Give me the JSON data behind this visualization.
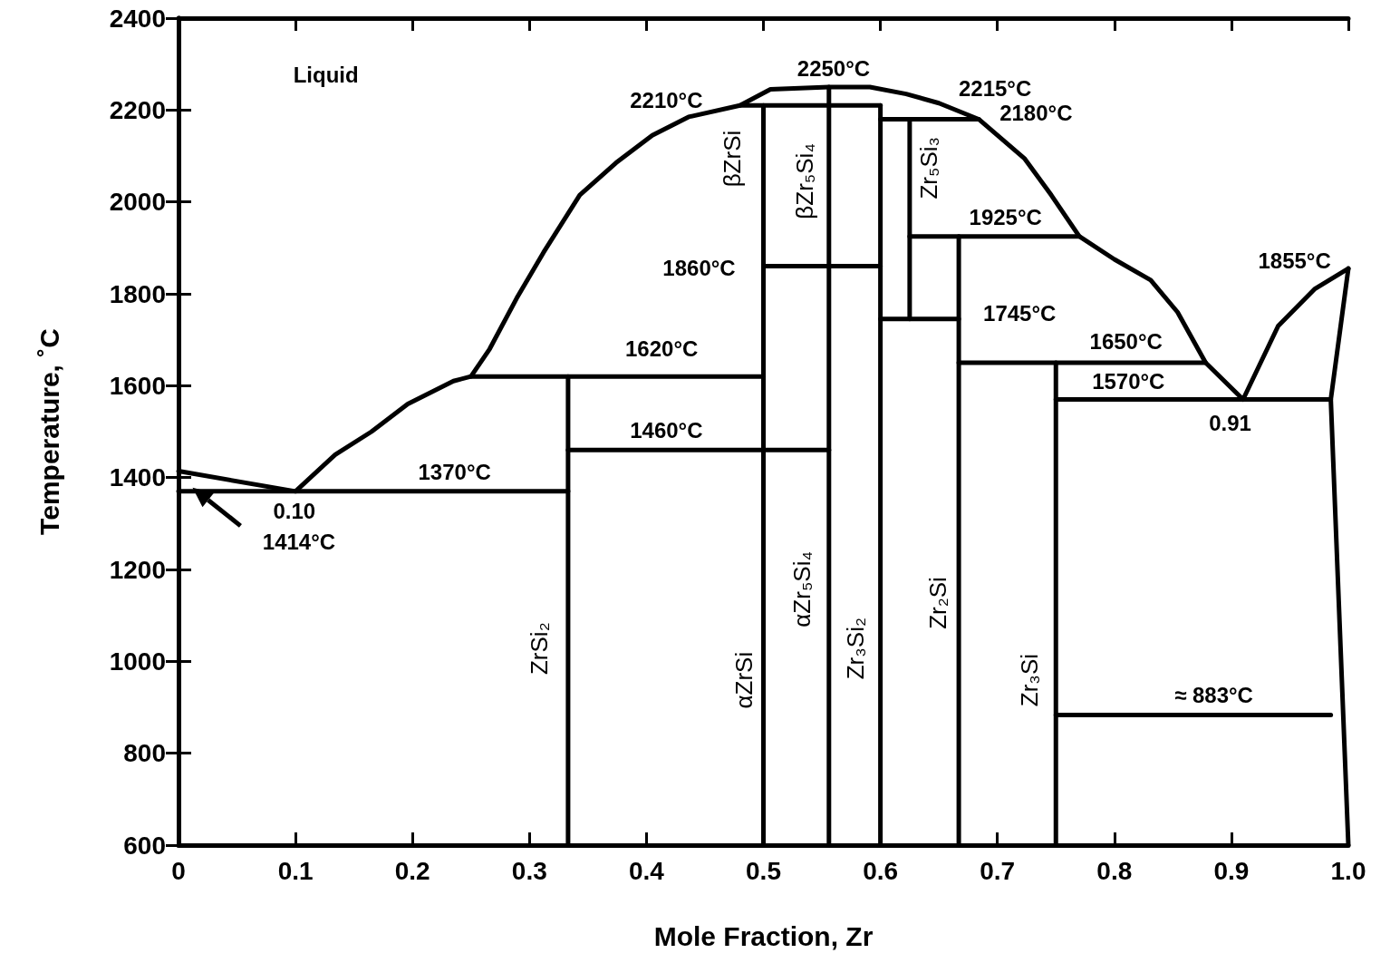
{
  "chart_data": {
    "type": "line",
    "xlabel": "Mole Fraction, Zr",
    "ylabel": "Temperature, ˚C",
    "xlim": [
      0,
      1
    ],
    "xticks": [
      0,
      0.1,
      0.2,
      0.3,
      0.4,
      0.5,
      0.6,
      0.7,
      0.8,
      0.9,
      {
        "value": 1,
        "label": "1.0"
      }
    ],
    "ylim": [
      600,
      2400
    ],
    "yticks": [
      600,
      800,
      1000,
      1200,
      1400,
      1600,
      1800,
      2000,
      2200,
      2400
    ],
    "grid": false,
    "marker": "none",
    "line_style": "solid",
    "series": [
      {
        "color": "#000000",
        "x": [
          0,
          0.1,
          0.134,
          0.165,
          0.196,
          0.235,
          0.25,
          0.266,
          0.289,
          0.312,
          0.343,
          0.374,
          0.405,
          0.436,
          0.48,
          0.506,
          0.556,
          0.591,
          0.622,
          0.65,
          0.684,
          0.723,
          0.746,
          0.77,
          0.8,
          0.831,
          0.854,
          0.878,
          0.91,
          0.94,
          0.971,
          1.0
        ],
        "values": [
          1414,
          1370,
          1450,
          1500,
          1560,
          1610,
          1620,
          1680,
          1790,
          1890,
          2015,
          2085,
          2145,
          2185,
          2210,
          2245,
          2250,
          2250,
          2235,
          2215,
          2180,
          2095,
          2015,
          1925,
          1875,
          1830,
          1760,
          1650,
          1570,
          1730,
          1810,
          1855
        ]
      },
      {
        "color": "#000000",
        "x": [
          1.0,
          0.985,
          1.0
        ],
        "values": [
          1855,
          1570,
          600
        ]
      },
      {
        "color": "#000000",
        "x": [
          0,
          0.333
        ],
        "values": [
          1370,
          1370
        ]
      },
      {
        "color": "#000000",
        "x": [
          0.25,
          0.5
        ],
        "values": [
          1620,
          1620
        ]
      },
      {
        "color": "#000000",
        "x": [
          0.333,
          0.556
        ],
        "values": [
          1460,
          1460
        ]
      },
      {
        "color": "#000000",
        "x": [
          0.5,
          0.6
        ],
        "values": [
          1860,
          1860
        ]
      },
      {
        "color": "#000000",
        "x": [
          0.48,
          0.6
        ],
        "values": [
          2210,
          2210
        ]
      },
      {
        "color": "#000000",
        "x": [
          0.6,
          0.684
        ],
        "values": [
          2180,
          2180
        ]
      },
      {
        "color": "#000000",
        "x": [
          0.625,
          0.77
        ],
        "values": [
          1925,
          1925
        ]
      },
      {
        "color": "#000000",
        "x": [
          0.6,
          0.667
        ],
        "values": [
          1745,
          1745
        ]
      },
      {
        "color": "#000000",
        "x": [
          0.667,
          0.878
        ],
        "values": [
          1650,
          1650
        ]
      },
      {
        "color": "#000000",
        "x": [
          0.75,
          0.985
        ],
        "values": [
          1570,
          1570
        ]
      },
      {
        "color": "#000000",
        "x": [
          0.75,
          0.985
        ],
        "values": [
          883,
          883
        ]
      },
      {
        "color": "#000000",
        "x": [
          0.333,
          0.333
        ],
        "values": [
          600,
          1620
        ]
      },
      {
        "color": "#000000",
        "x": [
          0.5,
          0.5
        ],
        "values": [
          600,
          2210
        ]
      },
      {
        "color": "#000000",
        "x": [
          0.556,
          0.556
        ],
        "values": [
          600,
          2250
        ]
      },
      {
        "color": "#000000",
        "x": [
          0.6,
          0.6
        ],
        "values": [
          600,
          2210
        ]
      },
      {
        "color": "#000000",
        "x": [
          0.625,
          0.625
        ],
        "values": [
          1745,
          2180
        ]
      },
      {
        "color": "#000000",
        "x": [
          0.667,
          0.667
        ],
        "values": [
          600,
          1925
        ]
      },
      {
        "color": "#000000",
        "x": [
          0.75,
          0.75
        ],
        "values": [
          600,
          1650
        ]
      }
    ],
    "annotations": [
      "Liquid",
      "2250°C",
      "2210°C",
      "2215°C",
      "2180°C",
      "1925°C",
      "1860°C",
      "1855°C",
      "1745°C",
      "1650°C",
      "1620°C",
      "1570°C",
      "1460°C",
      "0.91",
      "1370°C",
      "0.10",
      "1414°C",
      "≈ 883°C",
      "ZrSi₂",
      "αZrSi",
      "αZr₅Si₄",
      "Zr₃Si₂",
      "Zr₂Si",
      "Zr₃Si",
      "βZrSi",
      "βZr₅Si₄",
      "Zr₅Si₃"
    ]
  }
}
